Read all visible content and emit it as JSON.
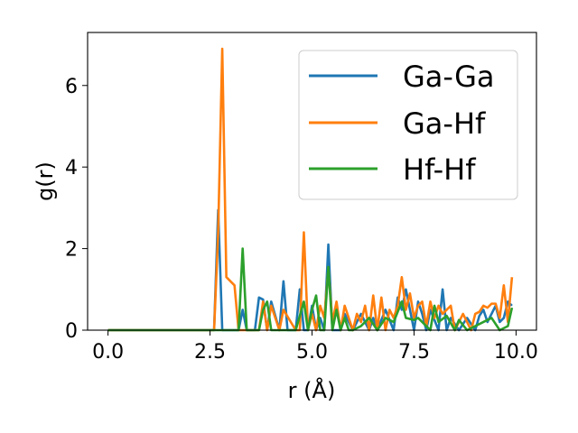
{
  "chart_data": {
    "type": "line",
    "xlabel": "r (Å)",
    "ylabel": "g(r)",
    "xlim": [
      -0.5,
      10.5
    ],
    "ylim": [
      0,
      7.3
    ],
    "xticks": [
      "0.0",
      "2.5",
      "5.0",
      "7.5",
      "10.0"
    ],
    "yticks": [
      "0",
      "2",
      "4",
      "6"
    ],
    "legend_position": "top-right",
    "grid": false,
    "series": [
      {
        "name": "Ga-Ga",
        "color": "#1f77b4",
        "x": [
          0.0,
          2.5,
          2.6,
          2.7,
          2.8,
          3.2,
          3.3,
          3.4,
          3.6,
          3.7,
          3.8,
          3.9,
          4.0,
          4.2,
          4.3,
          4.4,
          4.6,
          4.7,
          4.8,
          4.9,
          5.0,
          5.1,
          5.2,
          5.3,
          5.4,
          5.5,
          5.7,
          5.8,
          6.0,
          6.1,
          6.2,
          6.4,
          6.5,
          6.6,
          6.8,
          7.0,
          7.1,
          7.2,
          7.3,
          7.5,
          7.6,
          7.7,
          7.8,
          7.9,
          8.1,
          8.2,
          8.3,
          8.4,
          8.6,
          8.8,
          9.0,
          9.1,
          9.2,
          9.3,
          9.4,
          9.5,
          9.6,
          9.7,
          9.8,
          9.9
        ],
        "y": [
          0.0,
          0.0,
          0.0,
          2.95,
          0.0,
          0.0,
          0.5,
          0.0,
          0.0,
          0.8,
          0.75,
          0.0,
          0.7,
          0.0,
          1.2,
          0.0,
          0.0,
          1.0,
          0.0,
          0.0,
          0.6,
          0.0,
          0.3,
          0.0,
          2.1,
          0.0,
          0.0,
          0.4,
          0.0,
          0.2,
          0.4,
          0.0,
          0.3,
          0.0,
          0.5,
          0.0,
          0.8,
          0.5,
          1.0,
          0.0,
          0.7,
          0.4,
          0.0,
          0.5,
          0.0,
          1.0,
          0.0,
          0.3,
          0.0,
          0.3,
          0.0,
          0.35,
          0.5,
          0.2,
          0.4,
          0.6,
          0.2,
          0.3,
          0.7,
          0.6
        ]
      },
      {
        "name": "Ga-Hf",
        "color": "#ff7f0e",
        "x": [
          0.0,
          2.5,
          2.6,
          2.7,
          2.8,
          2.9,
          3.1,
          3.2,
          3.3,
          3.6,
          3.7,
          3.8,
          3.9,
          4.0,
          4.2,
          4.3,
          4.6,
          4.7,
          4.8,
          4.9,
          5.0,
          5.1,
          5.2,
          5.3,
          5.4,
          5.5,
          5.6,
          5.7,
          5.8,
          6.0,
          6.1,
          6.2,
          6.3,
          6.4,
          6.5,
          6.6,
          6.7,
          6.8,
          6.9,
          7.0,
          7.1,
          7.2,
          7.3,
          7.4,
          7.5,
          7.6,
          7.7,
          7.8,
          7.9,
          8.0,
          8.1,
          8.2,
          8.3,
          8.4,
          8.5,
          8.7,
          8.9,
          9.0,
          9.1,
          9.2,
          9.3,
          9.4,
          9.5,
          9.6,
          9.7,
          9.8,
          9.9
        ],
        "y": [
          0.0,
          0.0,
          0.0,
          2.4,
          6.9,
          1.3,
          1.1,
          0.0,
          0.0,
          0.0,
          0.0,
          0.7,
          0.0,
          0.6,
          0.0,
          0.5,
          0.0,
          0.0,
          2.4,
          0.0,
          0.4,
          0.0,
          0.6,
          0.3,
          1.5,
          0.2,
          0.7,
          0.0,
          0.6,
          0.0,
          0.4,
          0.2,
          0.6,
          0.0,
          0.85,
          0.0,
          0.8,
          0.0,
          0.5,
          0.3,
          0.6,
          1.3,
          0.5,
          0.9,
          0.3,
          0.6,
          0.7,
          0.1,
          0.7,
          0.3,
          0.6,
          0.4,
          0.5,
          0.6,
          0.0,
          0.4,
          0.0,
          0.4,
          0.45,
          0.6,
          0.55,
          0.65,
          0.65,
          0.3,
          1.1,
          0.2,
          1.3
        ]
      },
      {
        "name": "Hf-Hf",
        "color": "#2ca02c",
        "x": [
          0.0,
          2.5,
          3.1,
          3.2,
          3.3,
          3.4,
          3.6,
          3.7,
          3.8,
          3.9,
          4.0,
          4.2,
          4.4,
          4.6,
          4.8,
          4.9,
          5.0,
          5.1,
          5.2,
          5.3,
          5.4,
          5.5,
          5.6,
          5.7,
          5.8,
          5.9,
          6.0,
          6.2,
          6.4,
          6.6,
          6.8,
          7.0,
          7.2,
          7.3,
          7.5,
          7.6,
          7.7,
          7.9,
          8.0,
          8.1,
          8.3,
          8.5,
          8.6,
          8.8,
          9.0,
          9.2,
          9.4,
          9.6,
          9.8,
          9.9
        ],
        "y": [
          0.0,
          0.0,
          0.0,
          0.0,
          2.0,
          0.0,
          0.0,
          0.0,
          0.5,
          0.7,
          0.0,
          0.0,
          0.0,
          0.0,
          0.7,
          0.0,
          0.5,
          0.85,
          0.0,
          0.0,
          1.55,
          0.0,
          0.5,
          0.0,
          0.3,
          0.0,
          0.0,
          0.1,
          0.3,
          0.0,
          0.3,
          0.2,
          0.7,
          0.3,
          0.25,
          0.3,
          0.2,
          0.0,
          0.6,
          0.2,
          0.35,
          0.0,
          0.25,
          0.0,
          0.1,
          0.2,
          0.3,
          0.0,
          0.1,
          0.55
        ]
      }
    ]
  }
}
